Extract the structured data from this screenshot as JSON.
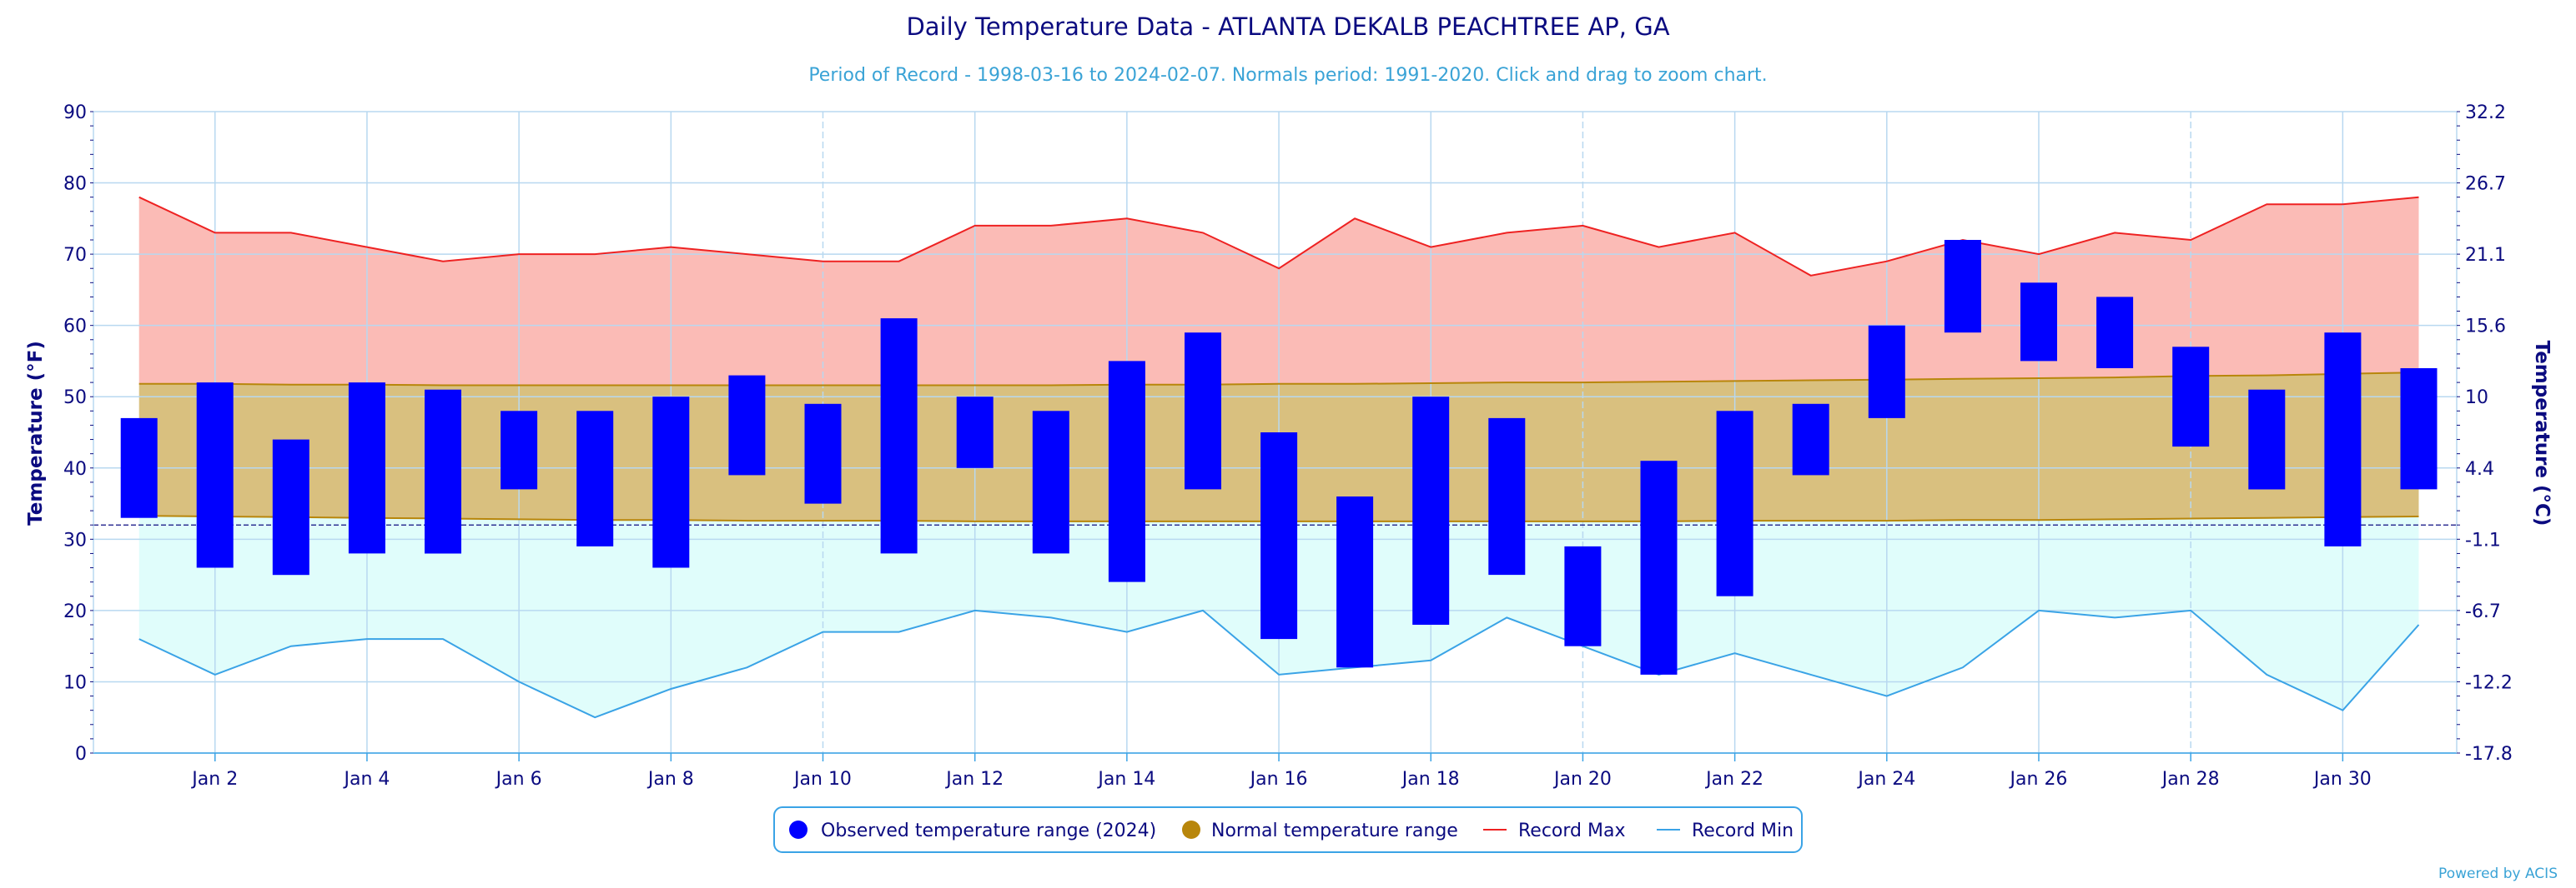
{
  "chart_data": {
    "type": "bar",
    "title": "Daily Temperature Data - ATLANTA DEKALB PEACHTREE AP, GA",
    "subtitle": "Period of Record - 1998-03-16 to 2024-02-07. Normals period: 1991-2020. Click and drag to zoom chart.",
    "ylabel_left": "Temperature (°F)",
    "ylabel_right": "Temperature (°C)",
    "ylim": [
      0,
      90
    ],
    "y_ticks": [
      "0",
      "10",
      "20",
      "30",
      "40",
      "50",
      "60",
      "70",
      "80",
      "90"
    ],
    "y_ticks_right": [
      "-17.8",
      "-12.2",
      "-6.7",
      "-1.1",
      "4.4",
      "10",
      "15.6",
      "21.1",
      "26.7",
      "32.2"
    ],
    "x_tick_labels": [
      {
        "day": 2,
        "label": "Jan 2"
      },
      {
        "day": 4,
        "label": "Jan 4"
      },
      {
        "day": 6,
        "label": "Jan 6"
      },
      {
        "day": 8,
        "label": "Jan 8"
      },
      {
        "day": 10,
        "label": "Jan 10"
      },
      {
        "day": 12,
        "label": "Jan 12"
      },
      {
        "day": 14,
        "label": "Jan 14"
      },
      {
        "day": 16,
        "label": "Jan 16"
      },
      {
        "day": 18,
        "label": "Jan 18"
      },
      {
        "day": 20,
        "label": "Jan 20"
      },
      {
        "day": 22,
        "label": "Jan 22"
      },
      {
        "day": 24,
        "label": "Jan 24"
      },
      {
        "day": 26,
        "label": "Jan 26"
      },
      {
        "day": 28,
        "label": "Jan 28"
      },
      {
        "day": 30,
        "label": "Jan 30"
      }
    ],
    "xlim_days": [
      0.4,
      31.5
    ],
    "days": [
      1,
      2,
      3,
      4,
      5,
      6,
      7,
      8,
      9,
      10,
      11,
      12,
      13,
      14,
      15,
      16,
      17,
      18,
      19,
      20,
      21,
      22,
      23,
      24,
      25,
      26,
      27,
      28,
      29,
      30,
      31
    ],
    "freezing_line_f": 32,
    "series": [
      {
        "name": "Observed temperature range (2024)",
        "kind": "range-bar",
        "color": "#0000ff",
        "high": [
          47,
          52,
          44,
          52,
          51,
          48,
          48,
          50,
          53,
          49,
          61,
          50,
          48,
          55,
          59,
          45,
          36,
          50,
          47,
          29,
          41,
          48,
          49,
          60,
          72,
          66,
          64,
          57,
          51,
          59,
          54
        ],
        "low": [
          33,
          26,
          25,
          28,
          28,
          37,
          29,
          26,
          39,
          35,
          28,
          40,
          28,
          24,
          37,
          16,
          12,
          18,
          25,
          15,
          11,
          22,
          39,
          47,
          59,
          55,
          54,
          43,
          37,
          29,
          37
        ]
      },
      {
        "name": "Normal temperature range",
        "kind": "area-range",
        "color": "#b8860b",
        "fill": "#d9c07f",
        "high": [
          51.8,
          51.8,
          51.7,
          51.7,
          51.6,
          51.6,
          51.6,
          51.6,
          51.6,
          51.6,
          51.6,
          51.6,
          51.6,
          51.7,
          51.7,
          51.8,
          51.8,
          51.9,
          52.0,
          52.0,
          52.1,
          52.2,
          52.3,
          52.4,
          52.5,
          52.6,
          52.7,
          52.9,
          53.0,
          53.2,
          53.4
        ],
        "low": [
          33.3,
          33.2,
          33.1,
          33.0,
          32.9,
          32.8,
          32.7,
          32.7,
          32.6,
          32.6,
          32.6,
          32.5,
          32.5,
          32.5,
          32.5,
          32.5,
          32.5,
          32.5,
          32.5,
          32.5,
          32.5,
          32.6,
          32.6,
          32.6,
          32.7,
          32.7,
          32.8,
          32.9,
          33.0,
          33.1,
          33.2
        ]
      },
      {
        "name": "Record Max",
        "kind": "line",
        "color": "#ee2222",
        "fill": "#fbbbb6",
        "values": [
          78,
          73,
          73,
          71,
          69,
          70,
          70,
          71,
          70,
          69,
          69,
          74,
          74,
          75,
          73,
          68,
          75,
          71,
          73,
          74,
          71,
          73,
          67,
          69,
          72,
          70,
          73,
          72,
          77,
          77,
          78
        ]
      },
      {
        "name": "Record Min",
        "kind": "line",
        "color": "#3aa3e6",
        "fill": "#e0fdfb",
        "values": [
          16,
          11,
          15,
          16,
          16,
          10,
          5,
          9,
          12,
          17,
          17,
          20,
          19,
          17,
          20,
          11,
          12,
          13,
          19,
          15,
          11,
          14,
          11,
          8,
          12,
          20,
          19,
          20,
          11,
          6,
          18
        ]
      }
    ],
    "legend": {
      "placement": "bottom-center",
      "items": [
        {
          "label": "Observed temperature range (2024)",
          "marker": "circle",
          "color": "#0000ff"
        },
        {
          "label": "Normal temperature range",
          "marker": "circle",
          "color": "#b8860b"
        },
        {
          "label": "Record Max",
          "marker": "line",
          "color": "#ee2222"
        },
        {
          "label": "Record Min",
          "marker": "line",
          "color": "#3aa3e6"
        }
      ]
    },
    "grid": true
  },
  "credit": "Powered by ACIS"
}
